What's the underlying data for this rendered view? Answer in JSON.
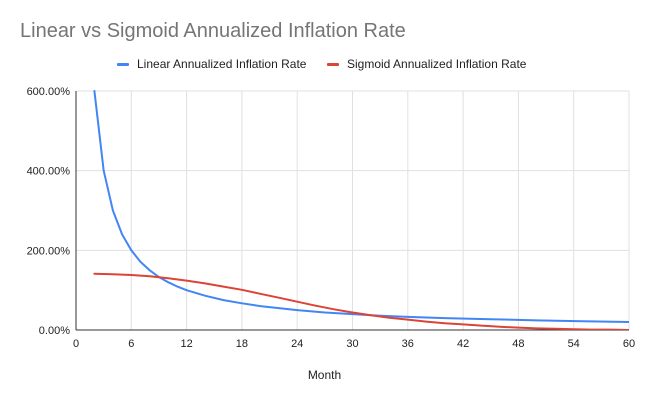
{
  "chart_data": {
    "type": "line",
    "title": "Linear vs Sigmoid Annualized Inflation Rate",
    "xlabel": "Month",
    "ylabel": "",
    "xlim": [
      0,
      60
    ],
    "ylim": [
      0,
      600
    ],
    "x_ticks": [
      0,
      6,
      12,
      18,
      24,
      30,
      36,
      42,
      48,
      54,
      60
    ],
    "y_ticks": [
      0,
      200,
      400,
      600
    ],
    "x_tick_labels": [
      "0",
      "6",
      "12",
      "18",
      "24",
      "30",
      "36",
      "42",
      "48",
      "54",
      "60"
    ],
    "y_tick_labels": [
      "0.00%",
      "200.00%",
      "400.00%",
      "600.00%"
    ],
    "grid": true,
    "legend_position": "top",
    "series": [
      {
        "name": "Linear Annualized Inflation Rate",
        "color": "#4285f4",
        "points": [
          [
            2,
            600
          ],
          [
            3,
            400
          ],
          [
            4,
            300
          ],
          [
            5,
            240
          ],
          [
            6,
            200
          ],
          [
            7,
            171
          ],
          [
            8,
            150
          ],
          [
            9,
            133
          ],
          [
            10,
            120
          ],
          [
            11,
            109
          ],
          [
            12,
            100
          ],
          [
            14,
            86
          ],
          [
            16,
            75
          ],
          [
            18,
            67
          ],
          [
            20,
            60
          ],
          [
            22,
            55
          ],
          [
            24,
            50
          ],
          [
            27,
            44
          ],
          [
            30,
            40
          ],
          [
            33,
            36
          ],
          [
            36,
            33
          ],
          [
            40,
            30
          ],
          [
            45,
            27
          ],
          [
            50,
            24
          ],
          [
            55,
            22
          ],
          [
            60,
            20
          ]
        ]
      },
      {
        "name": "Sigmoid Annualized Inflation Rate",
        "color": "#db4437",
        "points": [
          [
            2,
            141
          ],
          [
            4,
            140
          ],
          [
            6,
            138
          ],
          [
            8,
            135
          ],
          [
            10,
            130
          ],
          [
            12,
            124
          ],
          [
            14,
            117
          ],
          [
            16,
            109
          ],
          [
            18,
            101
          ],
          [
            20,
            91
          ],
          [
            22,
            81
          ],
          [
            24,
            71
          ],
          [
            26,
            61
          ],
          [
            28,
            52
          ],
          [
            30,
            44
          ],
          [
            32,
            37
          ],
          [
            34,
            31
          ],
          [
            36,
            26
          ],
          [
            38,
            21
          ],
          [
            40,
            17
          ],
          [
            42,
            14
          ],
          [
            44,
            11
          ],
          [
            46,
            8
          ],
          [
            48,
            6
          ],
          [
            50,
            4
          ],
          [
            52,
            3
          ],
          [
            54,
            2
          ],
          [
            56,
            1
          ],
          [
            58,
            1
          ],
          [
            60,
            0
          ]
        ]
      }
    ]
  },
  "colors": {
    "grid": "#e0e0e0",
    "axis": "#333333",
    "title": "#757575",
    "label": "#222222"
  }
}
